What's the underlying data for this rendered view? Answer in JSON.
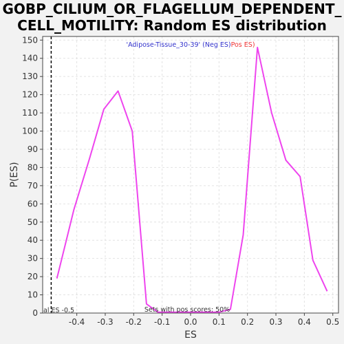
{
  "title_lines": [
    "GOBP_CILIUM_OR_FLAGELLUM_DEPENDENT_",
    "CELL_MOTILITY: Random ES distribution"
  ],
  "chart_data": {
    "type": "line",
    "title": "GOBP_CILIUM_OR_FLAGELLUM_DEPENDENT_CELL_MOTILITY: Random ES distribution",
    "xlabel": "ES",
    "ylabel": "P(ES)",
    "xlim": [
      -0.52,
      0.52
    ],
    "ylim": [
      0,
      152
    ],
    "xticks": [
      -0.4,
      -0.3,
      -0.2,
      -0.1,
      0.0,
      0.1,
      0.2,
      0.3,
      0.4,
      0.5
    ],
    "xtick_labels": [
      "-0.4",
      "-0.3",
      "-0.2",
      "-0.1",
      "0.0",
      "0.1",
      "0.2",
      "0.3",
      "0.4",
      "0.5"
    ],
    "yticks": [
      0,
      10,
      20,
      30,
      40,
      50,
      60,
      70,
      80,
      90,
      100,
      110,
      120,
      130,
      140,
      150
    ],
    "grid": true,
    "legend": {
      "neg_label": "'Adipose-Tissue_30-39' (Neg ES)",
      "pos_label": "Pos ES)",
      "neg_color": "#3333cc",
      "pos_color": "#ee3333",
      "placement": "top-center"
    },
    "line_color": "#ee44ee",
    "series": [
      {
        "x": [
          -0.47,
          -0.41,
          -0.355,
          -0.305,
          -0.255,
          -0.205,
          -0.155,
          -0.115,
          -0.05,
          0.0,
          0.05,
          0.1,
          0.14,
          0.185,
          0.235,
          0.285,
          0.335,
          0.385,
          0.43,
          0.48
        ],
        "y": [
          19,
          57,
          85,
          112,
          122,
          100,
          5,
          0.5,
          0.5,
          0.5,
          0.5,
          0.5,
          2,
          43,
          146,
          110,
          84,
          75,
          29,
          12
        ]
      }
    ],
    "marker_line": {
      "x": -0.49,
      "label": "al ES -0.5",
      "style": "dashed",
      "color": "#000000"
    },
    "annotation": "Sets with pos scores: 50%"
  }
}
